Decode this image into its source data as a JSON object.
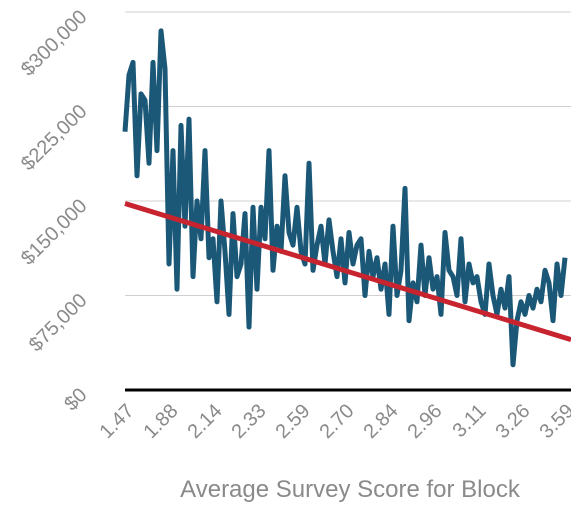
{
  "chart_data": {
    "type": "line",
    "x_label": "Average Survey Score for Block",
    "categories": [
      "1.47",
      null,
      null,
      null,
      null,
      null,
      null,
      null,
      null,
      null,
      null,
      "1.88",
      null,
      null,
      null,
      null,
      null,
      null,
      null,
      null,
      null,
      null,
      "2.14",
      null,
      null,
      null,
      null,
      null,
      null,
      null,
      null,
      null,
      null,
      "2.33",
      null,
      null,
      null,
      null,
      null,
      null,
      null,
      null,
      null,
      null,
      "2.59",
      null,
      null,
      null,
      null,
      null,
      null,
      null,
      null,
      null,
      null,
      "2.70",
      null,
      null,
      null,
      null,
      null,
      null,
      null,
      null,
      null,
      null,
      "2.84",
      null,
      null,
      null,
      null,
      null,
      null,
      null,
      null,
      null,
      null,
      "2.96",
      null,
      null,
      null,
      null,
      null,
      null,
      null,
      null,
      null,
      null,
      "3.11",
      null,
      null,
      null,
      null,
      null,
      null,
      null,
      null,
      null,
      null,
      "3.26",
      null,
      null,
      null,
      null,
      null,
      null,
      null,
      null,
      null,
      null,
      "3.59"
    ],
    "values": [
      205000,
      250000,
      260000,
      170000,
      235000,
      230000,
      180000,
      260000,
      190000,
      285000,
      255000,
      100000,
      190000,
      80000,
      210000,
      130000,
      215000,
      90000,
      150000,
      120000,
      190000,
      105000,
      120000,
      70000,
      150000,
      110000,
      60000,
      140000,
      90000,
      100000,
      140000,
      50000,
      145000,
      80000,
      145000,
      120000,
      190000,
      95000,
      130000,
      110000,
      170000,
      125000,
      115000,
      145000,
      110000,
      100000,
      180000,
      95000,
      115000,
      130000,
      100000,
      135000,
      110000,
      90000,
      120000,
      85000,
      125000,
      100000,
      115000,
      120000,
      75000,
      110000,
      90000,
      105000,
      80000,
      100000,
      60000,
      130000,
      75000,
      95000,
      160000,
      55000,
      85000,
      70000,
      115000,
      75000,
      105000,
      80000,
      90000,
      60000,
      125000,
      95000,
      90000,
      75000,
      120000,
      70000,
      100000,
      85000,
      90000,
      70000,
      60000,
      100000,
      75000,
      60000,
      80000,
      65000,
      90000,
      20000,
      55000,
      70000,
      60000,
      75000,
      65000,
      80000,
      70000,
      95000,
      85000,
      55000,
      100000,
      75000,
      105000
    ],
    "color": "#1b5878",
    "trendline": {
      "values": [
        148000,
        40000
      ],
      "color": "#c8242f"
    },
    "ylim": [
      0,
      300000
    ],
    "yticks": [
      {
        "value": 0,
        "label": "$0"
      },
      {
        "value": 75000,
        "label": "$75,000"
      },
      {
        "value": 150000,
        "label": "$150,000"
      },
      {
        "value": 225000,
        "label": "$225,000"
      },
      {
        "value": 300000,
        "label": "$300,000"
      }
    ],
    "grid": true
  }
}
